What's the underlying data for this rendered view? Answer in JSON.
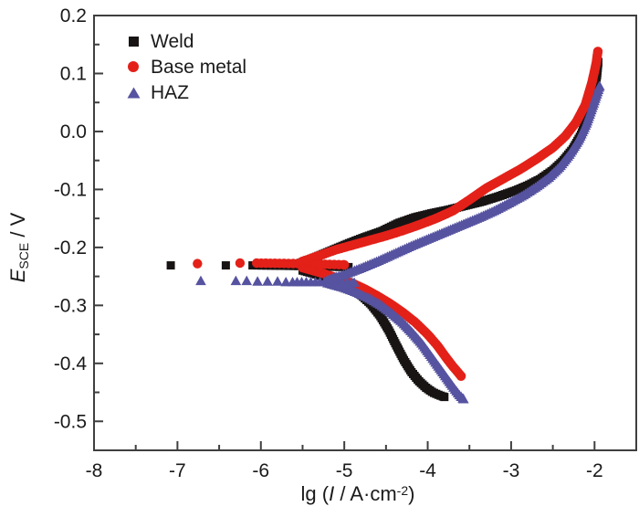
{
  "figure": {
    "background": "#ffffff",
    "frame_color": "#3f3f3f",
    "text_color": "#1a1a1a"
  },
  "chart_data": {
    "type": "scatter",
    "title": "",
    "xlabel_pre": "lg (",
    "xlabel_var": "I",
    "xlabel_mid": " / A·cm",
    "xlabel_sup": "-2",
    "xlabel_post": ")",
    "ylabel_var": "E",
    "ylabel_sub": "SCE",
    "ylabel_rest": " / V",
    "xlim": [
      -8,
      -1.5
    ],
    "ylim": [
      -0.55,
      0.2
    ],
    "grid": false,
    "legend_position": "top-left-inside",
    "x_ticks": {
      "labels": [
        "-8",
        "-7",
        "-6",
        "-5",
        "-4",
        "-3",
        "-2"
      ],
      "values": [
        -8,
        -7,
        -6,
        -5,
        -4,
        -3,
        -2
      ],
      "minor": [
        -7.5,
        -6.5,
        -5.5,
        -4.5,
        -3.5,
        -2.5
      ]
    },
    "y_ticks": {
      "labels": [
        "0.2",
        "0.1",
        "0.0",
        "-0.1",
        "-0.2",
        "-0.3",
        "-0.4",
        "-0.5"
      ],
      "values": [
        0.2,
        0.1,
        0.0,
        -0.1,
        -0.2,
        -0.3,
        -0.4,
        -0.5
      ],
      "minor": [
        0.15,
        0.05,
        -0.05,
        -0.15,
        -0.25,
        -0.35,
        -0.45
      ]
    },
    "series": [
      {
        "name": "Weld",
        "marker": "square",
        "color": "#181414",
        "ocp_markers": [
          [
            -7.08,
            -0.231
          ],
          [
            -6.42,
            -0.231
          ]
        ],
        "flat": [
          [
            -6.1,
            -0.231
          ],
          [
            -5.6,
            -0.232
          ],
          [
            -4.95,
            -0.234
          ]
        ],
        "anodic": [
          [
            -5.55,
            -0.228
          ],
          [
            -5.35,
            -0.217
          ],
          [
            -5.15,
            -0.205
          ],
          [
            -4.95,
            -0.193
          ],
          [
            -4.75,
            -0.182
          ],
          [
            -4.55,
            -0.172
          ],
          [
            -4.35,
            -0.158
          ],
          [
            -4.15,
            -0.148
          ],
          [
            -3.95,
            -0.141
          ],
          [
            -3.75,
            -0.135
          ],
          [
            -3.55,
            -0.128
          ],
          [
            -3.35,
            -0.121
          ],
          [
            -3.15,
            -0.112
          ],
          [
            -2.95,
            -0.102
          ],
          [
            -2.8,
            -0.093
          ],
          [
            -2.65,
            -0.082
          ],
          [
            -2.5,
            -0.067
          ],
          [
            -2.38,
            -0.051
          ],
          [
            -2.26,
            -0.03
          ],
          [
            -2.16,
            -0.005
          ],
          [
            -2.07,
            0.028
          ],
          [
            -2.01,
            0.063
          ],
          [
            -1.97,
            0.097
          ],
          [
            -1.955,
            0.12
          ]
        ],
        "cathodic": [
          [
            -5.5,
            -0.24
          ],
          [
            -5.3,
            -0.248
          ],
          [
            -5.1,
            -0.258
          ],
          [
            -4.95,
            -0.268
          ],
          [
            -4.8,
            -0.282
          ],
          [
            -4.68,
            -0.298
          ],
          [
            -4.57,
            -0.318
          ],
          [
            -4.47,
            -0.342
          ],
          [
            -4.38,
            -0.368
          ],
          [
            -4.29,
            -0.393
          ],
          [
            -4.2,
            -0.414
          ],
          [
            -4.11,
            -0.43
          ],
          [
            -4.02,
            -0.442
          ],
          [
            -3.94,
            -0.45
          ],
          [
            -3.86,
            -0.455
          ],
          [
            -3.8,
            -0.458
          ]
        ]
      },
      {
        "name": "Base metal",
        "marker": "circle",
        "color": "#e32119",
        "ocp_markers": [
          [
            -6.76,
            -0.228
          ],
          [
            -6.25,
            -0.227
          ]
        ],
        "flat": [
          [
            -6.05,
            -0.227
          ],
          [
            -5.5,
            -0.228
          ],
          [
            -5.0,
            -0.23
          ]
        ],
        "anodic": [
          [
            -5.5,
            -0.224
          ],
          [
            -5.3,
            -0.214
          ],
          [
            -5.1,
            -0.204
          ],
          [
            -4.9,
            -0.196
          ],
          [
            -4.7,
            -0.188
          ],
          [
            -4.5,
            -0.18
          ],
          [
            -4.3,
            -0.171
          ],
          [
            -4.1,
            -0.161
          ],
          [
            -3.9,
            -0.15
          ],
          [
            -3.7,
            -0.137
          ],
          [
            -3.5,
            -0.118
          ],
          [
            -3.3,
            -0.098
          ],
          [
            -3.1,
            -0.082
          ],
          [
            -2.9,
            -0.066
          ],
          [
            -2.7,
            -0.048
          ],
          [
            -2.5,
            -0.028
          ],
          [
            -2.35,
            -0.008
          ],
          [
            -2.22,
            0.016
          ],
          [
            -2.11,
            0.046
          ],
          [
            -2.03,
            0.085
          ],
          [
            -1.98,
            0.118
          ],
          [
            -1.96,
            0.138
          ]
        ],
        "cathodic": [
          [
            -5.5,
            -0.235
          ],
          [
            -5.3,
            -0.243
          ],
          [
            -5.1,
            -0.252
          ],
          [
            -4.9,
            -0.262
          ],
          [
            -4.75,
            -0.272
          ],
          [
            -4.6,
            -0.284
          ],
          [
            -4.45,
            -0.297
          ],
          [
            -4.3,
            -0.312
          ],
          [
            -4.15,
            -0.329
          ],
          [
            -4.0,
            -0.35
          ],
          [
            -3.88,
            -0.37
          ],
          [
            -3.78,
            -0.39
          ],
          [
            -3.7,
            -0.405
          ],
          [
            -3.64,
            -0.415
          ],
          [
            -3.6,
            -0.422
          ]
        ]
      },
      {
        "name": "HAZ",
        "marker": "triangle",
        "color": "#5653a0",
        "ocp_markers": [
          [
            -6.72,
            -0.258
          ],
          [
            -6.3,
            -0.258
          ],
          [
            -6.17,
            -0.258
          ],
          [
            -6.04,
            -0.259
          ],
          [
            -5.92,
            -0.259
          ],
          [
            -5.8,
            -0.259
          ],
          [
            -5.7,
            -0.26
          ]
        ],
        "flat": [
          [
            -5.62,
            -0.26
          ],
          [
            -5.2,
            -0.26
          ],
          [
            -4.88,
            -0.261
          ]
        ],
        "anodic": [
          [
            -5.2,
            -0.256
          ],
          [
            -5.0,
            -0.247
          ],
          [
            -4.8,
            -0.236
          ],
          [
            -4.6,
            -0.224
          ],
          [
            -4.4,
            -0.211
          ],
          [
            -4.2,
            -0.198
          ],
          [
            -4.0,
            -0.186
          ],
          [
            -3.8,
            -0.174
          ],
          [
            -3.6,
            -0.162
          ],
          [
            -3.4,
            -0.15
          ],
          [
            -3.2,
            -0.137
          ],
          [
            -3.0,
            -0.122
          ],
          [
            -2.85,
            -0.11
          ],
          [
            -2.7,
            -0.096
          ],
          [
            -2.55,
            -0.08
          ],
          [
            -2.42,
            -0.062
          ],
          [
            -2.3,
            -0.04
          ],
          [
            -2.19,
            -0.015
          ],
          [
            -2.1,
            0.012
          ],
          [
            -2.03,
            0.04
          ],
          [
            -1.97,
            0.065
          ],
          [
            -1.94,
            0.078
          ]
        ],
        "cathodic": [
          [
            -5.2,
            -0.262
          ],
          [
            -5.0,
            -0.27
          ],
          [
            -4.85,
            -0.278
          ],
          [
            -4.7,
            -0.288
          ],
          [
            -4.56,
            -0.3
          ],
          [
            -4.43,
            -0.314
          ],
          [
            -4.3,
            -0.33
          ],
          [
            -4.18,
            -0.348
          ],
          [
            -4.06,
            -0.368
          ],
          [
            -3.95,
            -0.39
          ],
          [
            -3.85,
            -0.41
          ],
          [
            -3.76,
            -0.428
          ],
          [
            -3.68,
            -0.444
          ],
          [
            -3.62,
            -0.455
          ],
          [
            -3.57,
            -0.462
          ]
        ]
      }
    ]
  }
}
